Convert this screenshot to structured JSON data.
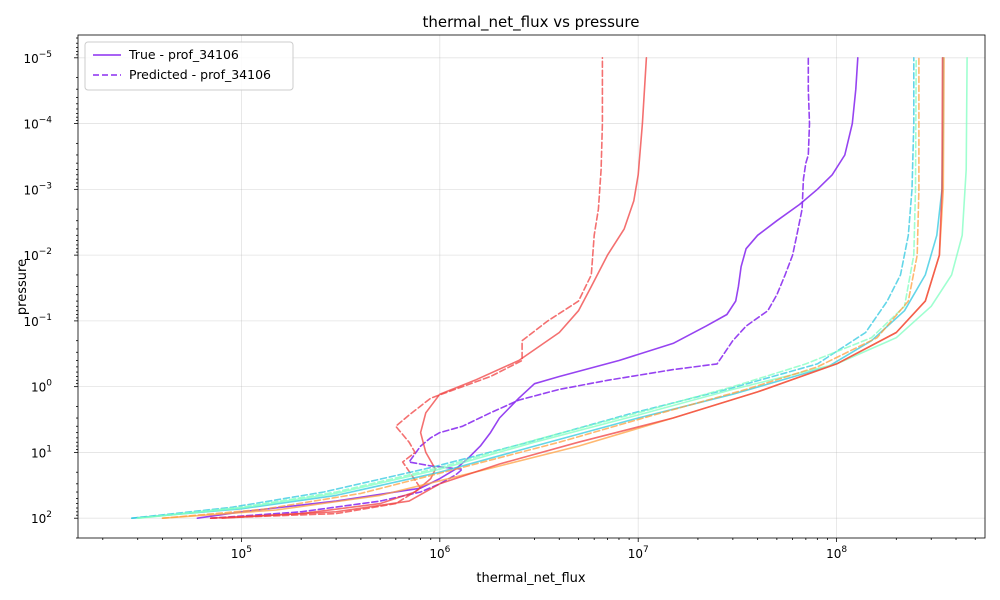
{
  "chart_data": {
    "type": "line",
    "title": "thermal_net_flux vs pressure",
    "xlabel": "thermal_net_flux",
    "ylabel": "pressure",
    "xscale": "log",
    "yscale": "log",
    "y_inverted": true,
    "xlim": [
      15000,
      560000000
    ],
    "ylim": [
      200,
      4.5e-06
    ],
    "grid": true,
    "legend_position": "top-left",
    "x_ticks": [
      {
        "value": 100000,
        "base": "10",
        "exp": "5"
      },
      {
        "value": 1000000,
        "base": "10",
        "exp": "6"
      },
      {
        "value": 10000000,
        "base": "10",
        "exp": "7"
      },
      {
        "value": 100000000,
        "base": "10",
        "exp": "8"
      }
    ],
    "y_ticks": [
      {
        "value": 100,
        "base": "10",
        "exp": "2"
      },
      {
        "value": 10,
        "base": "10",
        "exp": "1"
      },
      {
        "value": 1,
        "base": "10",
        "exp": "0"
      },
      {
        "value": 0.1,
        "base": "10",
        "exp": "−1"
      },
      {
        "value": 0.01,
        "base": "10",
        "exp": "−2"
      },
      {
        "value": 0.001,
        "base": "10",
        "exp": "−3"
      },
      {
        "value": 0.0001,
        "base": "10",
        "exp": "−4"
      },
      {
        "value": 1e-05,
        "base": "10",
        "exp": "−5"
      }
    ],
    "legend": [
      {
        "label": "True - prof_34106",
        "color": "#8b2ff0",
        "dash": "solid"
      },
      {
        "label": "Predicted - prof_34106",
        "color": "#8b2ff0",
        "dash": "dashed"
      }
    ],
    "series": [
      {
        "label_in_legend": true,
        "kind": "true",
        "color": "#8b2ff0",
        "dash": "solid",
        "points": [
          [
            60000,
            100
          ],
          [
            100000,
            80
          ],
          [
            300000,
            55
          ],
          [
            800000,
            35
          ],
          [
            1000000,
            25
          ],
          [
            1200000,
            18
          ],
          [
            1400000,
            12
          ],
          [
            1600000,
            8
          ],
          [
            1800000,
            5
          ],
          [
            2000000,
            3
          ],
          [
            2500000,
            1.5
          ],
          [
            3000000,
            0.9
          ],
          [
            4000000,
            0.7
          ],
          [
            8000000,
            0.4
          ],
          [
            15000000,
            0.22
          ],
          [
            22000000,
            0.12
          ],
          [
            28000000,
            0.08
          ],
          [
            31000000,
            0.05
          ],
          [
            32000000,
            0.03
          ],
          [
            33000000,
            0.015
          ],
          [
            35000000,
            0.008
          ],
          [
            40000000,
            0.005
          ],
          [
            50000000,
            0.003
          ],
          [
            65000000,
            0.0017
          ],
          [
            80000000,
            0.001
          ],
          [
            95000000,
            0.0006
          ],
          [
            110000000,
            0.0003
          ],
          [
            120000000,
            0.0001
          ],
          [
            125000000,
            3e-05
          ],
          [
            128000000,
            1e-05
          ]
        ]
      },
      {
        "label_in_legend": true,
        "kind": "predicted",
        "color": "#8b2ff0",
        "dash": "dashed",
        "points": [
          [
            70000,
            100
          ],
          [
            200000,
            80
          ],
          [
            500000,
            55
          ],
          [
            800000,
            40
          ],
          [
            1000000,
            30
          ],
          [
            1200000,
            22
          ],
          [
            1300000,
            18
          ],
          [
            900000,
            16
          ],
          [
            700000,
            14
          ],
          [
            800000,
            8
          ],
          [
            900000,
            6
          ],
          [
            1000000,
            5
          ],
          [
            1300000,
            4
          ],
          [
            1800000,
            2.5
          ],
          [
            2500000,
            1.6
          ],
          [
            4000000,
            1.1
          ],
          [
            7000000,
            0.8
          ],
          [
            15000000,
            0.55
          ],
          [
            25000000,
            0.45
          ],
          [
            30000000,
            0.2
          ],
          [
            35000000,
            0.12
          ],
          [
            45000000,
            0.07
          ],
          [
            50000000,
            0.04
          ],
          [
            55000000,
            0.02
          ],
          [
            60000000,
            0.01
          ],
          [
            63000000,
            0.005
          ],
          [
            67000000,
            0.002
          ],
          [
            68000000,
            0.0007
          ],
          [
            70000000,
            0.0004
          ],
          [
            72000000,
            0.0003
          ],
          [
            73000000,
            0.0001
          ],
          [
            72000000,
            3e-05
          ],
          [
            72000000,
            1e-05
          ]
        ]
      },
      {
        "label_in_legend": false,
        "kind": "true",
        "color": "#f04040",
        "dash": "solid",
        "points": [
          [
            80000,
            100
          ],
          [
            200000,
            85
          ],
          [
            500000,
            60
          ],
          [
            750000,
            40
          ],
          [
            900000,
            25
          ],
          [
            950000,
            18
          ],
          [
            850000,
            10
          ],
          [
            800000,
            5
          ],
          [
            850000,
            2.5
          ],
          [
            1000000,
            1.3
          ],
          [
            1500000,
            0.8
          ],
          [
            2500000,
            0.4
          ],
          [
            4000000,
            0.15
          ],
          [
            5000000,
            0.07
          ],
          [
            5800000,
            0.03
          ],
          [
            7000000,
            0.01
          ],
          [
            8500000,
            0.004
          ],
          [
            9500000,
            0.0015
          ],
          [
            10000000,
            0.0006
          ],
          [
            10500000,
            0.0001
          ],
          [
            11000000,
            1e-05
          ]
        ]
      },
      {
        "label_in_legend": false,
        "kind": "predicted",
        "color": "#f04040",
        "dash": "dashed",
        "points": [
          [
            70000,
            100
          ],
          [
            300000,
            85
          ],
          [
            600000,
            60
          ],
          [
            800000,
            35
          ],
          [
            650000,
            14
          ],
          [
            750000,
            10
          ],
          [
            700000,
            7
          ],
          [
            600000,
            4
          ],
          [
            700000,
            2.7
          ],
          [
            900000,
            1.5
          ],
          [
            1300000,
            1
          ],
          [
            1800000,
            0.7
          ],
          [
            2600000,
            0.4
          ],
          [
            2600000,
            0.2
          ],
          [
            3500000,
            0.1
          ],
          [
            5000000,
            0.05
          ],
          [
            5800000,
            0.02
          ],
          [
            6000000,
            0.005
          ],
          [
            6300000,
            0.002
          ],
          [
            6500000,
            0.0005
          ],
          [
            6600000,
            0.0001
          ],
          [
            6600000,
            1e-05
          ]
        ]
      },
      {
        "label_in_legend": false,
        "kind": "true",
        "color": "#2fc8e0",
        "dash": "solid",
        "points": [
          [
            28000,
            100
          ],
          [
            100000,
            72
          ],
          [
            300000,
            45
          ],
          [
            1000000,
            20
          ],
          [
            3000000,
            8
          ],
          [
            10000000,
            3
          ],
          [
            30000000,
            1.3
          ],
          [
            90000000,
            0.5
          ],
          [
            150000000,
            0.2
          ],
          [
            220000000,
            0.07
          ],
          [
            280000000,
            0.02
          ],
          [
            320000000,
            0.005
          ],
          [
            340000000,
            0.001
          ],
          [
            345000000,
            0.0001
          ],
          [
            345000000,
            1e-05
          ]
        ]
      },
      {
        "label_in_legend": false,
        "kind": "predicted",
        "color": "#2fc8e0",
        "dash": "dashed",
        "points": [
          [
            28000,
            100
          ],
          [
            90000,
            68
          ],
          [
            260000,
            40
          ],
          [
            900000,
            17
          ],
          [
            2800000,
            7
          ],
          [
            9000000,
            2.6
          ],
          [
            28000000,
            1.1
          ],
          [
            80000000,
            0.45
          ],
          [
            140000000,
            0.15
          ],
          [
            180000000,
            0.05
          ],
          [
            210000000,
            0.02
          ],
          [
            230000000,
            0.005
          ],
          [
            240000000,
            0.001
          ],
          [
            245000000,
            0.0001
          ],
          [
            245000000,
            1e-05
          ]
        ]
      },
      {
        "label_in_legend": false,
        "kind": "true",
        "color": "#7fffc0",
        "dash": "solid",
        "points": [
          [
            30000,
            100
          ],
          [
            100000,
            70
          ],
          [
            300000,
            42
          ],
          [
            1000000,
            18
          ],
          [
            3000000,
            7
          ],
          [
            10000000,
            2.7
          ],
          [
            30000000,
            1.1
          ],
          [
            100000000,
            0.45
          ],
          [
            200000000,
            0.18
          ],
          [
            300000000,
            0.06
          ],
          [
            380000000,
            0.02
          ],
          [
            430000000,
            0.005
          ],
          [
            450000000,
            0.0005
          ],
          [
            455000000,
            1e-05
          ]
        ]
      },
      {
        "label_in_legend": false,
        "kind": "predicted",
        "color": "#7fffc0",
        "dash": "dashed",
        "points": [
          [
            30000,
            100
          ],
          [
            100000,
            68
          ],
          [
            300000,
            40
          ],
          [
            1000000,
            17
          ],
          [
            3000000,
            6.5
          ],
          [
            10000000,
            2.5
          ],
          [
            30000000,
            1.0
          ],
          [
            70000000,
            0.45
          ],
          [
            150000000,
            0.18
          ],
          [
            220000000,
            0.06
          ],
          [
            245000000,
            0.01
          ],
          [
            250000000,
            0.001
          ],
          [
            252000000,
            1e-05
          ]
        ]
      },
      {
        "label_in_legend": false,
        "kind": "true",
        "color": "#ffa040",
        "dash": "solid",
        "points": [
          [
            40000,
            100
          ],
          [
            150000,
            75
          ],
          [
            500000,
            45
          ],
          [
            1500000,
            20
          ],
          [
            5000000,
            8
          ],
          [
            15000000,
            3
          ],
          [
            40000000,
            1.2
          ],
          [
            100000000,
            0.45
          ],
          [
            200000000,
            0.15
          ],
          [
            280000000,
            0.05
          ],
          [
            330000000,
            0.01
          ],
          [
            345000000,
            0.001
          ],
          [
            348000000,
            1e-05
          ]
        ]
      },
      {
        "label_in_legend": false,
        "kind": "predicted",
        "color": "#ffa040",
        "dash": "dashed",
        "points": [
          [
            40000,
            100
          ],
          [
            130000,
            73
          ],
          [
            400000,
            42
          ],
          [
            1200000,
            18
          ],
          [
            4000000,
            7
          ],
          [
            12000000,
            2.7
          ],
          [
            35000000,
            1.1
          ],
          [
            80000000,
            0.5
          ],
          [
            160000000,
            0.18
          ],
          [
            230000000,
            0.05
          ],
          [
            255000000,
            0.01
          ],
          [
            260000000,
            0.001
          ],
          [
            260000000,
            1e-05
          ]
        ]
      },
      {
        "label_in_legend": false,
        "kind": "true",
        "color": "#f04040",
        "dash": "solid",
        "points": [
          [
            70000,
            100
          ],
          [
            300000,
            80
          ],
          [
            700000,
            55
          ],
          [
            1000000,
            30
          ],
          [
            2000000,
            15
          ],
          [
            5000000,
            7
          ],
          [
            15000000,
            3
          ],
          [
            40000000,
            1.2
          ],
          [
            100000000,
            0.45
          ],
          [
            200000000,
            0.15
          ],
          [
            280000000,
            0.05
          ],
          [
            330000000,
            0.01
          ],
          [
            340000000,
            0.001
          ],
          [
            342000000,
            1e-05
          ]
        ]
      }
    ]
  }
}
